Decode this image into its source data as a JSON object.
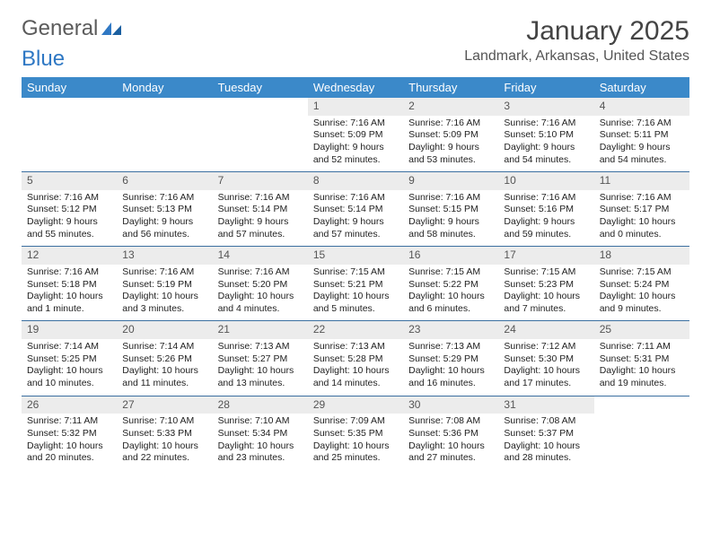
{
  "logo": {
    "text1": "General",
    "text2": "Blue"
  },
  "title": "January 2025",
  "location": "Landmark, Arkansas, United States",
  "weekdays": [
    "Sunday",
    "Monday",
    "Tuesday",
    "Wednesday",
    "Thursday",
    "Friday",
    "Saturday"
  ],
  "colors": {
    "header_bg": "#3b89c9",
    "header_text": "#ffffff",
    "row_divider": "#3b6fa0",
    "daynum_bg": "#ececec",
    "daynum_text": "#555555",
    "body_text": "#222222",
    "logo_general": "#5b5b5b",
    "logo_blue": "#2f78c4"
  },
  "weeks": [
    [
      {
        "empty": true
      },
      {
        "empty": true
      },
      {
        "empty": true
      },
      {
        "day": "1",
        "sunrise": "7:16 AM",
        "sunset": "5:09 PM",
        "daylight": "9 hours and 52 minutes."
      },
      {
        "day": "2",
        "sunrise": "7:16 AM",
        "sunset": "5:09 PM",
        "daylight": "9 hours and 53 minutes."
      },
      {
        "day": "3",
        "sunrise": "7:16 AM",
        "sunset": "5:10 PM",
        "daylight": "9 hours and 54 minutes."
      },
      {
        "day": "4",
        "sunrise": "7:16 AM",
        "sunset": "5:11 PM",
        "daylight": "9 hours and 54 minutes."
      }
    ],
    [
      {
        "day": "5",
        "sunrise": "7:16 AM",
        "sunset": "5:12 PM",
        "daylight": "9 hours and 55 minutes."
      },
      {
        "day": "6",
        "sunrise": "7:16 AM",
        "sunset": "5:13 PM",
        "daylight": "9 hours and 56 minutes."
      },
      {
        "day": "7",
        "sunrise": "7:16 AM",
        "sunset": "5:14 PM",
        "daylight": "9 hours and 57 minutes."
      },
      {
        "day": "8",
        "sunrise": "7:16 AM",
        "sunset": "5:14 PM",
        "daylight": "9 hours and 57 minutes."
      },
      {
        "day": "9",
        "sunrise": "7:16 AM",
        "sunset": "5:15 PM",
        "daylight": "9 hours and 58 minutes."
      },
      {
        "day": "10",
        "sunrise": "7:16 AM",
        "sunset": "5:16 PM",
        "daylight": "9 hours and 59 minutes."
      },
      {
        "day": "11",
        "sunrise": "7:16 AM",
        "sunset": "5:17 PM",
        "daylight": "10 hours and 0 minutes."
      }
    ],
    [
      {
        "day": "12",
        "sunrise": "7:16 AM",
        "sunset": "5:18 PM",
        "daylight": "10 hours and 1 minute."
      },
      {
        "day": "13",
        "sunrise": "7:16 AM",
        "sunset": "5:19 PM",
        "daylight": "10 hours and 3 minutes."
      },
      {
        "day": "14",
        "sunrise": "7:16 AM",
        "sunset": "5:20 PM",
        "daylight": "10 hours and 4 minutes."
      },
      {
        "day": "15",
        "sunrise": "7:15 AM",
        "sunset": "5:21 PM",
        "daylight": "10 hours and 5 minutes."
      },
      {
        "day": "16",
        "sunrise": "7:15 AM",
        "sunset": "5:22 PM",
        "daylight": "10 hours and 6 minutes."
      },
      {
        "day": "17",
        "sunrise": "7:15 AM",
        "sunset": "5:23 PM",
        "daylight": "10 hours and 7 minutes."
      },
      {
        "day": "18",
        "sunrise": "7:15 AM",
        "sunset": "5:24 PM",
        "daylight": "10 hours and 9 minutes."
      }
    ],
    [
      {
        "day": "19",
        "sunrise": "7:14 AM",
        "sunset": "5:25 PM",
        "daylight": "10 hours and 10 minutes."
      },
      {
        "day": "20",
        "sunrise": "7:14 AM",
        "sunset": "5:26 PM",
        "daylight": "10 hours and 11 minutes."
      },
      {
        "day": "21",
        "sunrise": "7:13 AM",
        "sunset": "5:27 PM",
        "daylight": "10 hours and 13 minutes."
      },
      {
        "day": "22",
        "sunrise": "7:13 AM",
        "sunset": "5:28 PM",
        "daylight": "10 hours and 14 minutes."
      },
      {
        "day": "23",
        "sunrise": "7:13 AM",
        "sunset": "5:29 PM",
        "daylight": "10 hours and 16 minutes."
      },
      {
        "day": "24",
        "sunrise": "7:12 AM",
        "sunset": "5:30 PM",
        "daylight": "10 hours and 17 minutes."
      },
      {
        "day": "25",
        "sunrise": "7:11 AM",
        "sunset": "5:31 PM",
        "daylight": "10 hours and 19 minutes."
      }
    ],
    [
      {
        "day": "26",
        "sunrise": "7:11 AM",
        "sunset": "5:32 PM",
        "daylight": "10 hours and 20 minutes."
      },
      {
        "day": "27",
        "sunrise": "7:10 AM",
        "sunset": "5:33 PM",
        "daylight": "10 hours and 22 minutes."
      },
      {
        "day": "28",
        "sunrise": "7:10 AM",
        "sunset": "5:34 PM",
        "daylight": "10 hours and 23 minutes."
      },
      {
        "day": "29",
        "sunrise": "7:09 AM",
        "sunset": "5:35 PM",
        "daylight": "10 hours and 25 minutes."
      },
      {
        "day": "30",
        "sunrise": "7:08 AM",
        "sunset": "5:36 PM",
        "daylight": "10 hours and 27 minutes."
      },
      {
        "day": "31",
        "sunrise": "7:08 AM",
        "sunset": "5:37 PM",
        "daylight": "10 hours and 28 minutes."
      },
      {
        "empty": true
      }
    ]
  ]
}
